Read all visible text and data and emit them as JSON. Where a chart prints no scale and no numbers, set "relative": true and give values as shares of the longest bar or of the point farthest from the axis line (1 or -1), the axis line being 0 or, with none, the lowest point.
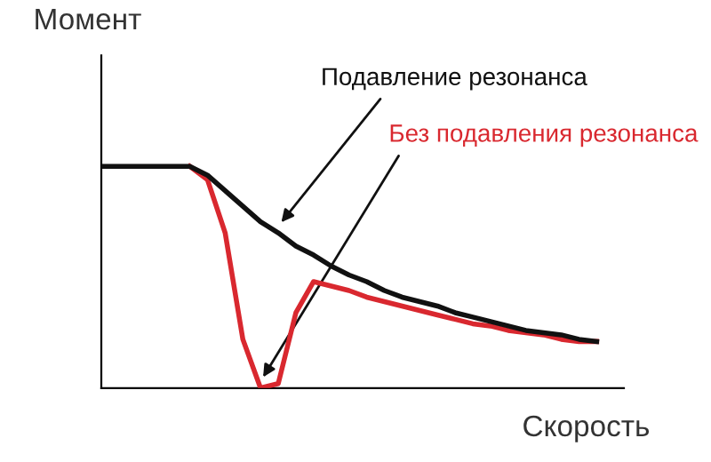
{
  "chart_data": {
    "type": "line",
    "relative": true,
    "xlabel": "Скорость",
    "ylabel": "Момент",
    "legend": false,
    "marker": "none",
    "line_style": "solid",
    "categories": [
      null,
      null,
      null,
      null,
      null,
      null,
      null,
      null,
      null,
      null,
      null,
      null,
      null,
      null,
      null,
      null,
      null,
      null,
      null,
      null,
      null,
      null,
      null,
      null,
      null,
      null,
      null,
      null,
      null
    ],
    "series": [
      {
        "name": "Подавление резонанса",
        "color": "#111111",
        "values": [
          1,
          1,
          1,
          1,
          1,
          1,
          0.96,
          0.89,
          0.82,
          0.75,
          0.7,
          0.64,
          0.6,
          0.55,
          0.51,
          0.48,
          0.44,
          0.41,
          0.39,
          0.37,
          0.34,
          0.32,
          0.3,
          0.28,
          0.26,
          0.25,
          0.24,
          0.22,
          0.21
        ]
      },
      {
        "name": "Без подавления резонанса",
        "color": "#d9282f",
        "values": [
          null,
          null,
          null,
          null,
          null,
          1,
          0.94,
          0.7,
          0.22,
          0,
          0.02,
          0.34,
          0.48,
          0.46,
          0.44,
          0.41,
          0.39,
          0.37,
          0.35,
          0.33,
          0.31,
          0.29,
          0.28,
          0.26,
          0.25,
          0.24,
          0.22,
          0.21,
          0.21
        ]
      }
    ]
  }
}
